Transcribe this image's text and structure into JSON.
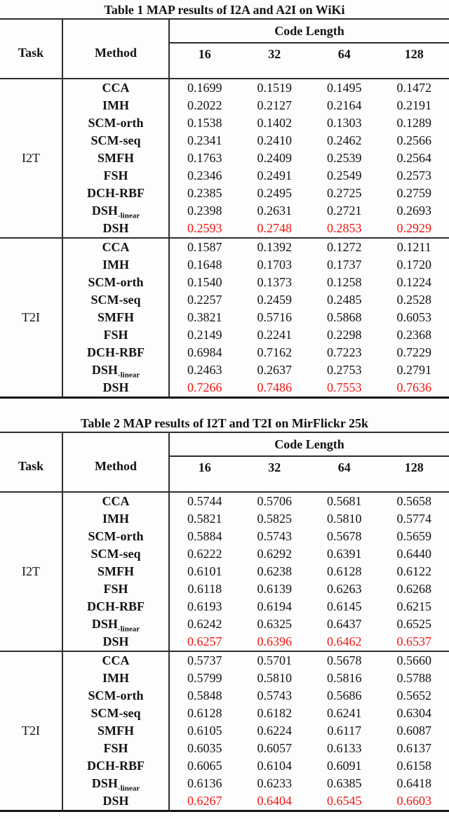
{
  "highlight_color": "#ee1511",
  "header": {
    "task": "Task",
    "method": "Method",
    "code_length": "Code Length",
    "lengths": [
      "16",
      "32",
      "64",
      "128"
    ]
  },
  "tables": [
    {
      "title": "Table 1 MAP results of I2A and A2I on WiKi",
      "sections": [
        {
          "task": "I2T",
          "rows": [
            {
              "method": "CCA",
              "values": [
                "0.1699",
                "0.1519",
                "0.1495",
                "0.1472"
              ]
            },
            {
              "method": "IMH",
              "values": [
                "0.2022",
                "0.2127",
                "0.2164",
                "0.2191"
              ]
            },
            {
              "method": "SCM-orth",
              "values": [
                "0.1538",
                "0.1402",
                "0.1303",
                "0.1289"
              ]
            },
            {
              "method": "SCM-seq",
              "values": [
                "0.2341",
                "0.2410",
                "0.2462",
                "0.2566"
              ]
            },
            {
              "method": "SMFH",
              "values": [
                "0.1763",
                "0.2409",
                "0.2539",
                "0.2564"
              ]
            },
            {
              "method": "FSH",
              "values": [
                "0.2346",
                "0.2491",
                "0.2549",
                "0.2573"
              ]
            },
            {
              "method": "DCH-RBF",
              "values": [
                "0.2385",
                "0.2495",
                "0.2725",
                "0.2759"
              ]
            },
            {
              "method": "DSH",
              "method_sub": "-linear",
              "values": [
                "0.2398",
                "0.2631",
                "0.2721",
                "0.2693"
              ]
            },
            {
              "method": "DSH",
              "highlight": true,
              "values": [
                "0.2593",
                "0.2748",
                "0.2853",
                "0.2929"
              ]
            }
          ]
        },
        {
          "task": "T2I",
          "rows": [
            {
              "method": "CCA",
              "values": [
                "0.1587",
                "0.1392",
                "0.1272",
                "0.1211"
              ]
            },
            {
              "method": "IMH",
              "values": [
                "0.1648",
                "0.1703",
                "0.1737",
                "0.1720"
              ]
            },
            {
              "method": "SCM-orth",
              "values": [
                "0.1540",
                "0.1373",
                "0.1258",
                "0.1224"
              ]
            },
            {
              "method": "SCM-seq",
              "values": [
                "0.2257",
                "0.2459",
                "0.2485",
                "0.2528"
              ]
            },
            {
              "method": "SMFH",
              "values": [
                "0.3821",
                "0.5716",
                "0.5868",
                "0.6053"
              ]
            },
            {
              "method": "FSH",
              "values": [
                "0.2149",
                "0.2241",
                "0.2298",
                "0.2368"
              ]
            },
            {
              "method": "DCH-RBF",
              "values": [
                "0.6984",
                "0.7162",
                "0.7223",
                "0.7229"
              ]
            },
            {
              "method": "DSH",
              "method_sub": "-linear",
              "values": [
                "0.2463",
                "0.2637",
                "0.2753",
                "0.2791"
              ]
            },
            {
              "method": "DSH",
              "highlight": true,
              "values": [
                "0.7266",
                "0.7486",
                "0.7553",
                "0.7636"
              ]
            }
          ]
        }
      ]
    },
    {
      "title": "Table 2 MAP results of I2T and T2I on MirFlickr 25k",
      "sections": [
        {
          "task": "I2T",
          "rows": [
            {
              "method": "CCA",
              "values": [
                "0.5744",
                "0.5706",
                "0.5681",
                "0.5658"
              ]
            },
            {
              "method": "IMH",
              "values": [
                "0.5821",
                "0.5825",
                "0.5810",
                "0.5774"
              ]
            },
            {
              "method": "SCM-orth",
              "values": [
                "0.5884",
                "0.5743",
                "0.5678",
                "0.5659"
              ]
            },
            {
              "method": "SCM-seq",
              "values": [
                "0.6222",
                "0.6292",
                "0.6391",
                "0.6440"
              ]
            },
            {
              "method": "SMFH",
              "values": [
                "0.6101",
                "0.6238",
                "0.6128",
                "0.6122"
              ]
            },
            {
              "method": "FSH",
              "values": [
                "0.6118",
                "0.6139",
                "0.6263",
                "0.6268"
              ]
            },
            {
              "method": "DCH-RBF",
              "values": [
                "0.6193",
                "0.6194",
                "0.6145",
                "0.6215"
              ]
            },
            {
              "method": "DSH",
              "method_sub": "-linear",
              "values": [
                "0.6242",
                "0.6325",
                "0.6437",
                "0.6525"
              ]
            },
            {
              "method": "DSH",
              "highlight": true,
              "values": [
                "0.6257",
                "0.6396",
                "0.6462",
                "0.6537"
              ]
            }
          ]
        },
        {
          "task": "T2I",
          "rows": [
            {
              "method": "CCA",
              "values": [
                "0.5737",
                "0.5701",
                "0.5678",
                "0.5660"
              ]
            },
            {
              "method": "IMH",
              "values": [
                "0.5799",
                "0.5810",
                "0.5816",
                "0.5788"
              ]
            },
            {
              "method": "SCM-orth",
              "values": [
                "0.5848",
                "0.5743",
                "0.5686",
                "0.5652"
              ]
            },
            {
              "method": "SCM-seq",
              "values": [
                "0.6128",
                "0.6182",
                "0.6241",
                "0.6304"
              ]
            },
            {
              "method": "SMFH",
              "values": [
                "0.6105",
                "0.6224",
                "0.6117",
                "0.6087"
              ]
            },
            {
              "method": "FSH",
              "values": [
                "0.6035",
                "0.6057",
                "0.6133",
                "0.6137"
              ]
            },
            {
              "method": "DCH-RBF",
              "values": [
                "0.6065",
                "0.6104",
                "0.6091",
                "0.6158"
              ]
            },
            {
              "method": "DSH",
              "method_sub": "-linear",
              "values": [
                "0.6136",
                "0.6233",
                "0.6385",
                "0.6418"
              ]
            },
            {
              "method": "DSH",
              "highlight": true,
              "values": [
                "0.6267",
                "0.6404",
                "0.6545",
                "0.6603"
              ]
            }
          ]
        }
      ]
    }
  ]
}
